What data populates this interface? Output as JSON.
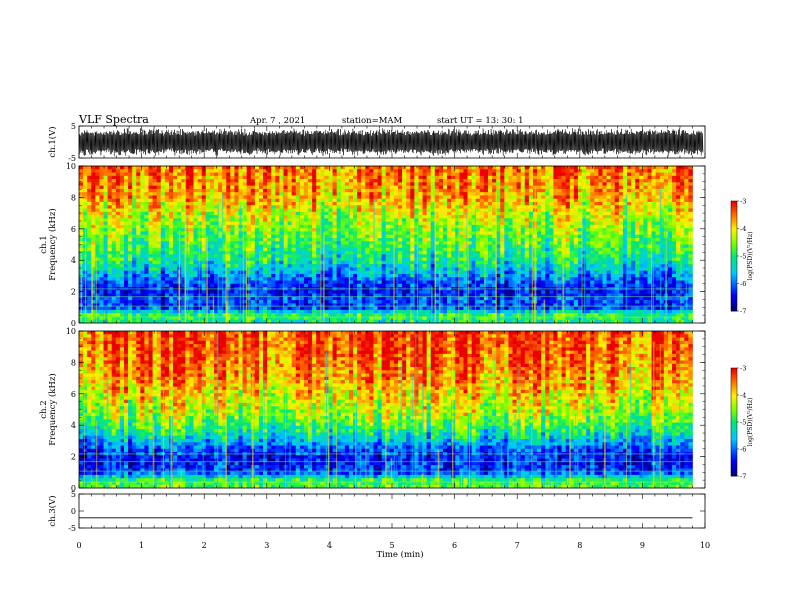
{
  "header": {
    "title": "VLF Spectra",
    "date": "Apr. 7 , 2021",
    "station": "station=MAM",
    "start": "start UT = 13: 30: 1"
  },
  "chart_data": [
    {
      "type": "line",
      "panel": "ch1-waveform",
      "ylabel": "ch.1(V)",
      "ylim": [
        -5,
        5
      ],
      "y_ticks": [
        "5",
        "-5"
      ],
      "x_range_min": [
        0,
        10
      ],
      "series_color": "#000000",
      "description_values": {
        "typical_min": -4.5,
        "typical_max": 4.5
      }
    },
    {
      "type": "heatmap",
      "panel": "ch1-spectrogram",
      "ylabel": "ch.1\nFrequency (kHz)",
      "ylim": [
        0,
        10
      ],
      "y_ticks": [
        "0",
        "2",
        "4",
        "6",
        "8",
        "10"
      ],
      "x_range_min": [
        0,
        10
      ],
      "data_end_min": 9.8,
      "colorbar": {
        "label": "log(PSD)(V²/Hz)",
        "range": [
          -7,
          -3
        ],
        "ticks": [
          "-3",
          "-4",
          "-5",
          "-6",
          "-7"
        ]
      },
      "profile_freq_khz": [
        0,
        0.5,
        1,
        1.5,
        2,
        2.5,
        3,
        3.5,
        4,
        5,
        6,
        7,
        8,
        9,
        10
      ],
      "profile_log_psd": [
        -5.2,
        -4.8,
        -6.3,
        -6.1,
        -6.4,
        -6.2,
        -5.8,
        -5.5,
        -5.1,
        -4.8,
        -4.5,
        -4.2,
        -3.8,
        -3.6,
        -3.5
      ]
    },
    {
      "type": "heatmap",
      "panel": "ch2-spectrogram",
      "ylabel": "ch.2\nFrequency (kHz)",
      "ylim": [
        0,
        10
      ],
      "y_ticks": [
        "0",
        "2",
        "4",
        "6",
        "8",
        "10"
      ],
      "x_range_min": [
        0,
        10
      ],
      "data_end_min": 9.8,
      "colorbar": {
        "label": "log(PSD)(V²/Hz)",
        "range": [
          -7,
          -3
        ],
        "ticks": [
          "-3",
          "-4",
          "-5",
          "-6",
          "-7"
        ]
      },
      "profile_freq_khz": [
        0,
        0.5,
        1,
        1.5,
        2,
        2.5,
        3,
        3.5,
        4,
        5,
        6,
        7,
        8,
        9,
        10
      ],
      "profile_log_psd": [
        -4.6,
        -4.9,
        -6.2,
        -6.3,
        -6.4,
        -6.1,
        -5.6,
        -5.2,
        -4.8,
        -4.3,
        -4.0,
        -3.7,
        -3.5,
        -3.4,
        -3.3
      ]
    },
    {
      "type": "line",
      "panel": "ch3-waveform",
      "ylabel": "ch.3(V)",
      "ylim": [
        -5,
        5
      ],
      "y_ticks": [
        "5",
        "0",
        "-5"
      ],
      "x_range_min": [
        0,
        10
      ],
      "series_color": "#000000",
      "values_constant": -2.0
    }
  ],
  "x_axis": {
    "label": "Time (min)",
    "ticks": [
      "0",
      "1",
      "2",
      "3",
      "4",
      "5",
      "6",
      "7",
      "8",
      "9",
      "10"
    ],
    "range": [
      0,
      10
    ]
  }
}
